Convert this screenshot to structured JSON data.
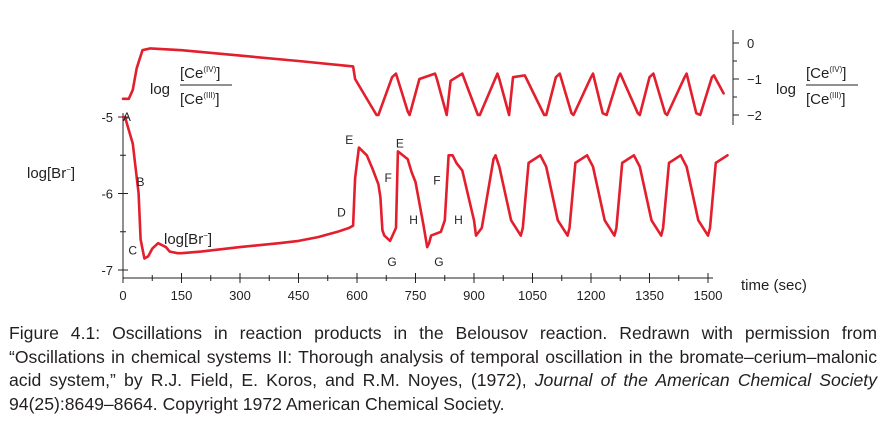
{
  "chart_data": {
    "type": "line",
    "x_axis": {
      "label": "time (sec)",
      "range": [
        0,
        1500
      ],
      "ticks": [
        0,
        150,
        300,
        450,
        600,
        750,
        900,
        1050,
        1200,
        1350,
        1500
      ]
    },
    "left_axis": {
      "label_main": "log[Br",
      "label_sup": "−",
      "label_close": "]",
      "range": [
        -7,
        -5
      ],
      "ticks": [
        {
          "value": -5,
          "label": "-5"
        },
        {
          "value": -6,
          "label": "-6"
        },
        {
          "value": -7,
          "label": "-7"
        }
      ]
    },
    "right_axis": {
      "label_log": "log",
      "label_numerator": "[Ce",
      "label_numerator_sup": "(IV)",
      "label_denominator": "[Ce",
      "label_denominator_sup": "(III)",
      "label_close": "]",
      "range": [
        -2,
        0
      ],
      "ticks": [
        {
          "value": 0,
          "label": "0"
        },
        {
          "value": -1,
          "label": "−1"
        },
        {
          "value": -2,
          "label": "−2"
        }
      ]
    },
    "series": [
      {
        "name": "log[Ce(IV)]/[Ce(III)]",
        "axis": "right",
        "x": [
          0,
          15,
          25,
          35,
          50,
          70,
          150,
          300,
          450,
          590,
          595,
          650,
          655,
          690,
          700,
          730,
          735,
          760,
          800,
          805,
          830,
          840,
          870,
          875,
          910,
          915,
          960,
          965,
          990,
          1000,
          1030,
          1035,
          1080,
          1085,
          1110,
          1120,
          1150,
          1155,
          1200,
          1205,
          1230,
          1240,
          1270,
          1275,
          1320,
          1325,
          1350,
          1360,
          1390,
          1395,
          1440,
          1445,
          1470,
          1480,
          1510,
          1515,
          1540
        ],
        "y": [
          -1.55,
          -1.55,
          -1.3,
          -0.7,
          -0.2,
          -0.15,
          -0.2,
          -0.35,
          -0.5,
          -0.65,
          -1.0,
          -2.0,
          -2.0,
          -0.95,
          -0.85,
          -1.9,
          -2.0,
          -1.0,
          -0.85,
          -1.0,
          -2.0,
          -1.05,
          -0.85,
          -1.0,
          -2.0,
          -2.0,
          -0.85,
          -1.0,
          -2.0,
          -0.95,
          -0.9,
          -1.0,
          -2.0,
          -2.0,
          -0.95,
          -0.85,
          -1.95,
          -2.0,
          -0.95,
          -0.85,
          -1.95,
          -2.0,
          -0.95,
          -0.85,
          -1.95,
          -2.0,
          -0.95,
          -0.85,
          -1.95,
          -2.0,
          -0.95,
          -0.85,
          -1.95,
          -2.0,
          -0.95,
          -0.9,
          -1.4
        ]
      },
      {
        "name": "log[Br−]",
        "axis": "left",
        "x": [
          0,
          5,
          25,
          40,
          45,
          55,
          65,
          75,
          90,
          110,
          120,
          140,
          150,
          200,
          300,
          400,
          450,
          500,
          550,
          580,
          590,
          595,
          605,
          625,
          640,
          655,
          660,
          665,
          670,
          685,
          700,
          705,
          730,
          740,
          750,
          770,
          780,
          785,
          790,
          815,
          825,
          835,
          845,
          855,
          870,
          900,
          905,
          920,
          950,
          955,
          965,
          995,
          1020,
          1025,
          1040,
          1070,
          1075,
          1085,
          1115,
          1140,
          1145,
          1160,
          1190,
          1195,
          1205,
          1235,
          1260,
          1265,
          1280,
          1310,
          1315,
          1325,
          1355,
          1380,
          1385,
          1400,
          1430,
          1435,
          1445,
          1475,
          1500,
          1505,
          1520,
          1550
        ],
        "y": [
          -5.0,
          -5.0,
          -5.35,
          -6.0,
          -6.6,
          -6.85,
          -6.82,
          -6.72,
          -6.65,
          -6.7,
          -6.76,
          -6.78,
          -6.78,
          -6.76,
          -6.7,
          -6.65,
          -6.62,
          -6.57,
          -6.5,
          -6.45,
          -6.42,
          -5.8,
          -5.4,
          -5.5,
          -5.68,
          -5.88,
          -6.05,
          -6.48,
          -6.55,
          -6.62,
          -6.45,
          -5.45,
          -5.55,
          -5.72,
          -5.85,
          -6.4,
          -6.7,
          -6.65,
          -6.55,
          -6.5,
          -6.35,
          -5.5,
          -5.5,
          -5.6,
          -5.7,
          -6.35,
          -6.55,
          -6.45,
          -5.55,
          -5.5,
          -5.65,
          -6.35,
          -6.55,
          -6.45,
          -5.6,
          -5.5,
          -5.55,
          -5.65,
          -6.35,
          -6.55,
          -6.45,
          -5.6,
          -5.5,
          -5.55,
          -5.65,
          -6.35,
          -6.55,
          -6.45,
          -5.6,
          -5.5,
          -5.55,
          -5.65,
          -6.35,
          -6.55,
          -6.45,
          -5.6,
          -5.5,
          -5.55,
          -5.65,
          -6.35,
          -6.55,
          -6.45,
          -5.6,
          -5.5
        ]
      }
    ],
    "points": [
      {
        "label": "A",
        "x": 10,
        "y": -5.05
      },
      {
        "label": "B",
        "x": 45,
        "y": -5.9
      },
      {
        "label": "C",
        "x": 25,
        "y": -6.8
      },
      {
        "label": "D",
        "x": 560,
        "y": -6.3
      },
      {
        "label": "E",
        "x": 580,
        "y": -5.35
      },
      {
        "label": "F",
        "x": 680,
        "y": -5.85
      },
      {
        "label": "G",
        "x": 690,
        "y": -6.95
      },
      {
        "label": "E",
        "x": 710,
        "y": -5.4
      },
      {
        "label": "H",
        "x": 745,
        "y": -6.4
      },
      {
        "label": "F",
        "x": 805,
        "y": -5.88
      },
      {
        "label": "G",
        "x": 810,
        "y": -6.95
      },
      {
        "label": "H",
        "x": 860,
        "y": -6.4
      }
    ],
    "annotations": {
      "br_curve_label": "log[Br",
      "br_curve_label_sup": "−",
      "br_curve_label_close": "]",
      "ce_curve_log": "log",
      "ce_curve_numerator": "[Ce",
      "ce_curve_numerator_sup": "(IV)",
      "ce_curve_denominator": "[Ce",
      "ce_curve_denominator_sup": "(III)",
      "ce_curve_close": "]"
    },
    "line_color": "#e31e2d",
    "axis_color": "#231f20",
    "grid": false,
    "legend": "none"
  },
  "caption": {
    "part1": "Figure 4.1: Oscillations in reaction products in the Belousov reaction. Redrawn with permission from “Oscillations in chemical systems II: Thorough analysis of temporal oscillation in the bromate–cerium–malonic acid system,” by R.J. Field, E. Koros, and R.M. Noyes, (1972), ",
    "journal": "Journal of the American Chemical Society",
    "part2": " 94(25):8649–8664. Copyright 1972 American Chemical Society."
  }
}
